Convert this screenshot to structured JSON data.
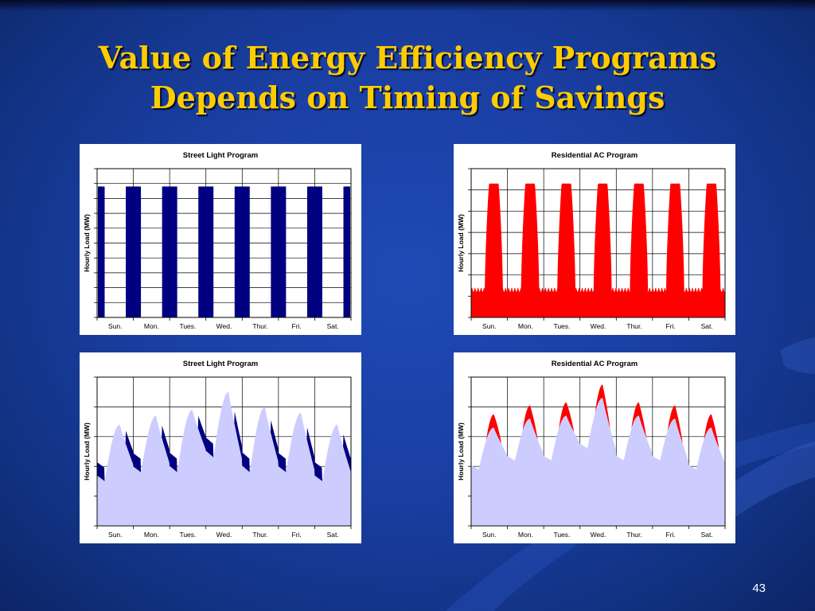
{
  "slide": {
    "title_line1": "Value of Energy Efficiency Programs",
    "title_line2": "Depends on Timing of Savings",
    "number": "43",
    "colors": {
      "title": "#ffcc00",
      "navy_series": "#000080",
      "red_series": "#ff0000",
      "lavender_series": "#ccccff"
    }
  },
  "chart_data": [
    {
      "type": "bar",
      "title": "Street Light Program",
      "ylabel": "Hourly Load (MW)",
      "xlabel": "",
      "categories": [
        "Sun.",
        "Mon.",
        "Tues.",
        "Wed.",
        "Thur.",
        "Fri.",
        "Sat."
      ],
      "ylim": [
        0,
        10
      ],
      "grid": true,
      "y_ticks": 10,
      "y_tick_labels": "none",
      "series": [
        {
          "color": "#000080",
          "pattern": "on 7 pm – 5 am each night",
          "night_load": 8.8,
          "day_load": 0
        }
      ]
    },
    {
      "type": "area",
      "title": "Residential AC Program",
      "ylabel": "Hourly Load (MW)",
      "xlabel": "",
      "categories": [
        "Sun.",
        "Mon.",
        "Tues.",
        "Wed.",
        "Thur.",
        "Fri.",
        "Sat."
      ],
      "ylim": [
        0,
        7
      ],
      "grid": true,
      "y_ticks": 7,
      "y_tick_labels": "none",
      "series": [
        {
          "color": "#ff0000",
          "pattern": "afternoon peak each day",
          "daily_peak": 6.3,
          "night_base": 1.3
        }
      ]
    },
    {
      "type": "area",
      "title": "Street Light Program",
      "ylabel": "Hourly Load (MW)",
      "xlabel": "",
      "categories": [
        "Sun.",
        "Mon.",
        "Tues.",
        "Wed.",
        "Thur.",
        "Fri.",
        "Sat."
      ],
      "ylim": [
        0,
        5
      ],
      "grid": true,
      "y_ticks": 5,
      "y_tick_labels": "none",
      "series": [
        {
          "color": "#ccccff",
          "role": "system load after savings",
          "daily_peak": [
            3.4,
            3.7,
            3.9,
            4.5,
            4.0,
            3.8,
            3.4
          ],
          "daily_min": [
            1.5,
            1.8,
            1.8,
            2.3,
            1.8,
            1.8,
            1.5
          ]
        },
        {
          "color": "#000080",
          "role": "savings (night-time)",
          "night_savings": 0.45
        }
      ]
    },
    {
      "type": "area",
      "title": "Residential AC Program",
      "ylabel": "Hourly Load (MW)",
      "xlabel": "",
      "categories": [
        "Sun.",
        "Mon.",
        "Tues.",
        "Wed.",
        "Thur.",
        "Fri.",
        "Sat."
      ],
      "ylim": [
        0,
        5
      ],
      "grid": true,
      "y_ticks": 5,
      "y_tick_labels": "none",
      "series": [
        {
          "color": "#ccccff",
          "role": "system load after savings",
          "daily_peak": [
            3.3,
            3.6,
            3.7,
            4.3,
            3.7,
            3.6,
            3.3
          ],
          "daily_min": [
            1.9,
            2.2,
            2.2,
            2.6,
            2.2,
            2.2,
            1.9
          ]
        },
        {
          "color": "#ff0000",
          "role": "savings (afternoon)",
          "peak_savings": 0.45
        }
      ]
    }
  ]
}
